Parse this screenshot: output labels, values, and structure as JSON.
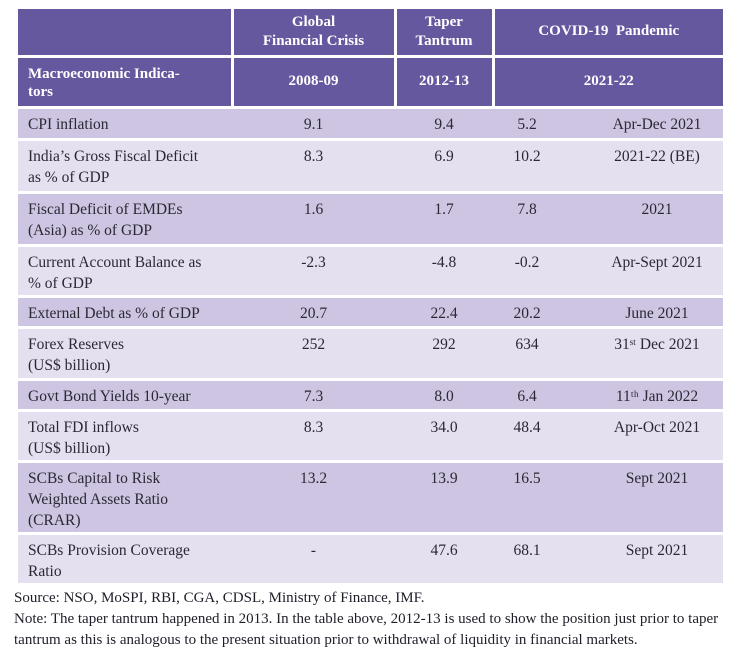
{
  "colors": {
    "header_bg": "#66589f",
    "row_dark": "#cdc5e1",
    "row_light": "#e4e0f0",
    "header_text": "#ffffff",
    "body_text": "#2b2834"
  },
  "table": {
    "header": {
      "corner": "",
      "gfc_title": "Global\nFinancial Crisis",
      "taper_title": "Taper\nTantrum",
      "covid_title": "COVID-19  Pandemic",
      "row_label": "Macroeconomic Indica-\ntors",
      "gfc_period": "2008-09",
      "taper_period": "2012-13",
      "covid_period": "2021-22"
    },
    "rows": [
      {
        "indicator": "CPI inflation",
        "gfc": "9.1",
        "taper": "9.4",
        "covid_value": "5.2",
        "covid_period": "Apr-Dec 2021"
      },
      {
        "indicator": "India’s Gross Fiscal Deficit\nas % of GDP",
        "gfc": "8.3",
        "taper": "6.9",
        "covid_value": "10.2",
        "covid_period": "2021-22 (BE)"
      },
      {
        "indicator": "Fiscal Deficit of EMDEs\n(Asia) as % of GDP",
        "gfc": "1.6",
        "taper": "1.7",
        "covid_value": "7.8",
        "covid_period": "2021"
      },
      {
        "indicator": "Current Account Balance as\n% of GDP",
        "gfc": "-2.3",
        "taper": "-4.8",
        "covid_value": "-0.2",
        "covid_period": "Apr-Sept 2021"
      },
      {
        "indicator": "External Debt as % of GDP",
        "gfc": "20.7",
        "taper": "22.4",
        "covid_value": "20.2",
        "covid_period": "June 2021"
      },
      {
        "indicator": "Forex Reserves\n(US$ billion)",
        "gfc": "252",
        "taper": "292",
        "covid_value": "634",
        "covid_period": "31ˢᵗ Dec 2021"
      },
      {
        "indicator": "Govt Bond Yields 10-year",
        "gfc": "7.3",
        "taper": "8.0",
        "covid_value": "6.4",
        "covid_period": "11ᵗʰ Jan 2022"
      },
      {
        "indicator": "Total FDI inflows\n(US$ billion)",
        "gfc": "8.3",
        "taper": "34.0",
        "covid_value": "48.4",
        "covid_period": "Apr-Oct 2021"
      },
      {
        "indicator": "SCBs Capital to Risk\nWeighted Assets Ratio\n(CRAR)",
        "gfc": "13.2",
        "taper": "13.9",
        "covid_value": "16.5",
        "covid_period": "Sept 2021"
      },
      {
        "indicator": "SCBs Provision Coverage\nRatio",
        "gfc": "-",
        "taper": "47.6",
        "covid_value": "68.1",
        "covid_period": "Sept 2021"
      }
    ]
  },
  "footer": {
    "source": "Source: NSO, MoSPI, RBI, CGA, CDSL, Ministry of Finance, IMF.",
    "note": "Note: The taper tantrum happened in 2013. In the table above, 2012-13 is used to show the position just prior to taper tantrum as this is analogous to the present situation prior to withdrawal of liquidity in financial markets."
  }
}
